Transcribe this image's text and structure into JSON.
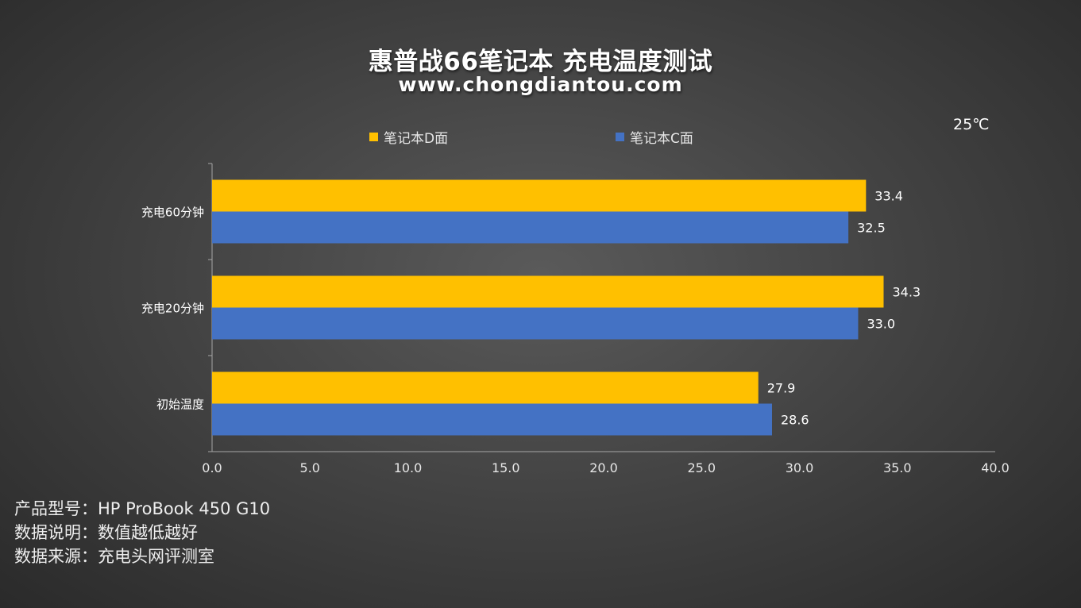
{
  "header": {
    "title": "惠普战66笔记本 充电温度测试",
    "subtitle": "www.chongdiantou.com",
    "ambient": "25℃"
  },
  "legend": {
    "series_d_label": "笔记本D面",
    "series_c_label": "笔记本C面"
  },
  "colors": {
    "series_d": "#FFC000",
    "series_c": "#4472C4"
  },
  "chart_data": {
    "type": "bar",
    "orientation": "horizontal",
    "categories": [
      "充电60分钟",
      "充电20分钟",
      "初始温度"
    ],
    "series": [
      {
        "name": "笔记本D面",
        "values": [
          33.4,
          34.3,
          27.9
        ],
        "labels": [
          "33.4",
          "34.3",
          "27.9"
        ]
      },
      {
        "name": "笔记本C面",
        "values": [
          32.5,
          33.0,
          28.6
        ],
        "labels": [
          "32.5",
          "33.0",
          "28.6"
        ]
      }
    ],
    "xlim": [
      0,
      40
    ],
    "xticks": [
      "0.0",
      "5.0",
      "10.0",
      "15.0",
      "20.0",
      "25.0",
      "30.0",
      "35.0",
      "40.0"
    ],
    "grid": false,
    "legend_position": "top"
  },
  "footer": {
    "line1": "产品型号：HP ProBook 450 G10",
    "line2": "数据说明：数值越低越好",
    "line3": "数据来源：充电头网评测室"
  }
}
